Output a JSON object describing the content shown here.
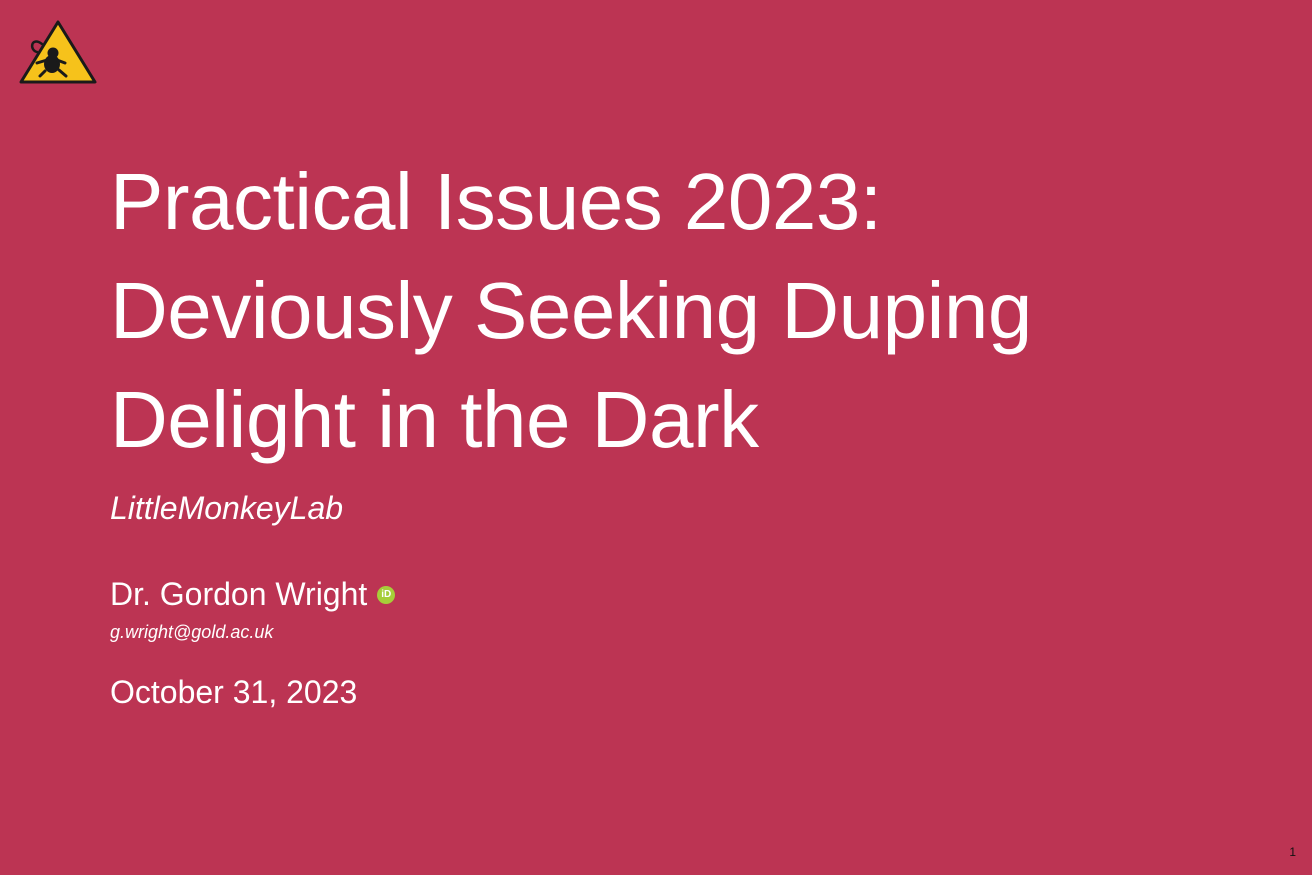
{
  "slide": {
    "title_lines": [
      "Practical Issues 2023:",
      "Deviously Seeking Duping",
      "Delight in the Dark"
    ],
    "subtitle": "LittleMonkeyLab",
    "author": "Dr. Gordon Wright",
    "email": "g.wright@gold.ac.uk",
    "date": "October 31, 2023",
    "page_number": "1"
  },
  "icons": {
    "logo": "monkey-warning-sign-icon",
    "orcid": "orcid-icon"
  },
  "colors": {
    "background": "#bc3453",
    "text": "#ffffff",
    "orcid": "#a6ce39",
    "logo_fill": "#f6c21b",
    "page_number": "#111111"
  }
}
